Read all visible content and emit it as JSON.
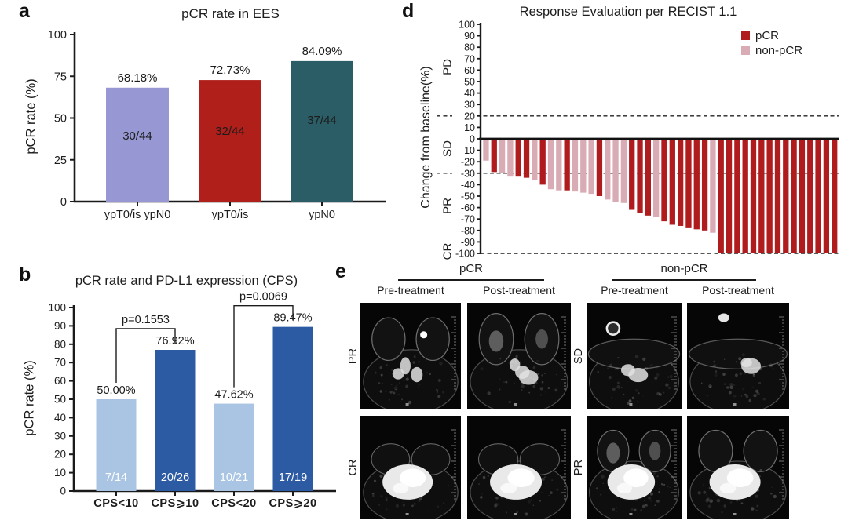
{
  "panel_letters": {
    "a": "a",
    "b": "b",
    "d": "d",
    "e": "e"
  },
  "chart_data": [
    {
      "id": "a",
      "type": "bar",
      "title": "pCR rate in EES",
      "ylabel": "pCR rate (%)",
      "ylim": [
        0,
        100
      ],
      "yticks": [
        0,
        25,
        50,
        75,
        100
      ],
      "categories": [
        "ypT0/is ypN0",
        "ypT0/is",
        "ypN0"
      ],
      "values": [
        68.18,
        72.73,
        84.09
      ],
      "value_labels": [
        "68.18%",
        "72.73%",
        "84.09%"
      ],
      "count_labels": [
        "30/44",
        "32/44",
        "37/44"
      ],
      "bar_colors": [
        "#9697d3",
        "#b01f19",
        "#2b5d66"
      ]
    },
    {
      "id": "b",
      "type": "bar",
      "title": "pCR rate and PD-L1 expression (CPS)",
      "ylabel": "pCR rate (%)",
      "ylim": [
        0,
        100
      ],
      "yticks": [
        0,
        10,
        20,
        30,
        40,
        50,
        60,
        70,
        80,
        90,
        100
      ],
      "categories": [
        "CPS<10",
        "CPS⩾10",
        "CPS<20",
        "CPS⩾20"
      ],
      "values": [
        50.0,
        76.92,
        47.62,
        89.47
      ],
      "value_labels": [
        "50.00%",
        "76.92%",
        "47.62%",
        "89.47%"
      ],
      "count_labels": [
        "7/14",
        "20/26",
        "10/21",
        "17/19"
      ],
      "bar_colors": [
        "#a9c5e3",
        "#2d5ba3",
        "#a9c5e3",
        "#2d5ba3"
      ],
      "comparisons": [
        {
          "label": "p=0.1553",
          "from": 0,
          "to": 1
        },
        {
          "label": "p=0.0069",
          "from": 2,
          "to": 3
        }
      ]
    },
    {
      "id": "d",
      "type": "waterfall",
      "title": "Response Evaluation per RECIST 1.1",
      "ylabel": "Change from baseline(%)",
      "ylim": [
        -100,
        100
      ],
      "ytick_step": 10,
      "reference_lines": [
        20,
        -30,
        -100
      ],
      "stage_labels": [
        {
          "text": "PD",
          "at": 62
        },
        {
          "text": "SD",
          "at": -9
        },
        {
          "text": "PR",
          "at": -60
        },
        {
          "text": "CR",
          "at": -99
        }
      ],
      "legend": [
        {
          "label": "pCR",
          "color": "#b01c1e"
        },
        {
          "label": "non-pCR",
          "color": "#d9abb4"
        }
      ],
      "group_colors": {
        "pCR": "#b01c1e",
        "non-pCR": "#d9abb4"
      },
      "bars": [
        {
          "value": -19,
          "group": "non-pCR"
        },
        {
          "value": -29,
          "group": "pCR"
        },
        {
          "value": -30,
          "group": "non-pCR"
        },
        {
          "value": -33,
          "group": "non-pCR"
        },
        {
          "value": -33,
          "group": "pCR"
        },
        {
          "value": -34,
          "group": "pCR"
        },
        {
          "value": -36,
          "group": "non-pCR"
        },
        {
          "value": -40,
          "group": "pCR"
        },
        {
          "value": -44,
          "group": "non-pCR"
        },
        {
          "value": -45,
          "group": "non-pCR"
        },
        {
          "value": -45,
          "group": "pCR"
        },
        {
          "value": -46,
          "group": "non-pCR"
        },
        {
          "value": -47,
          "group": "non-pCR"
        },
        {
          "value": -48,
          "group": "non-pCR"
        },
        {
          "value": -50,
          "group": "pCR"
        },
        {
          "value": -53,
          "group": "non-pCR"
        },
        {
          "value": -55,
          "group": "non-pCR"
        },
        {
          "value": -56,
          "group": "non-pCR"
        },
        {
          "value": -62,
          "group": "pCR"
        },
        {
          "value": -65,
          "group": "pCR"
        },
        {
          "value": -67,
          "group": "pCR"
        },
        {
          "value": -68,
          "group": "non-pCR"
        },
        {
          "value": -72,
          "group": "pCR"
        },
        {
          "value": -75,
          "group": "pCR"
        },
        {
          "value": -76,
          "group": "pCR"
        },
        {
          "value": -78,
          "group": "pCR"
        },
        {
          "value": -79,
          "group": "pCR"
        },
        {
          "value": -80,
          "group": "pCR"
        },
        {
          "value": -82,
          "group": "non-pCR"
        },
        {
          "value": -100,
          "group": "pCR"
        },
        {
          "value": -100,
          "group": "pCR"
        },
        {
          "value": -100,
          "group": "pCR"
        },
        {
          "value": -100,
          "group": "pCR"
        },
        {
          "value": -100,
          "group": "pCR"
        },
        {
          "value": -100,
          "group": "pCR"
        },
        {
          "value": -100,
          "group": "pCR"
        },
        {
          "value": -100,
          "group": "pCR"
        },
        {
          "value": -100,
          "group": "pCR"
        },
        {
          "value": -100,
          "group": "pCR"
        },
        {
          "value": -100,
          "group": "pCR"
        },
        {
          "value": -100,
          "group": "pCR"
        },
        {
          "value": -100,
          "group": "pCR"
        },
        {
          "value": -100,
          "group": "pCR"
        },
        {
          "value": -100,
          "group": "pCR"
        }
      ]
    }
  ],
  "panel_e": {
    "group_headers": [
      "pCR",
      "non-pCR"
    ],
    "column_labels": [
      "Pre-treatment",
      "Post-treatment",
      "Pre-treatment",
      "Post-treatment"
    ],
    "row_labels": [
      "PR",
      "CR",
      "SD",
      "PR"
    ]
  }
}
